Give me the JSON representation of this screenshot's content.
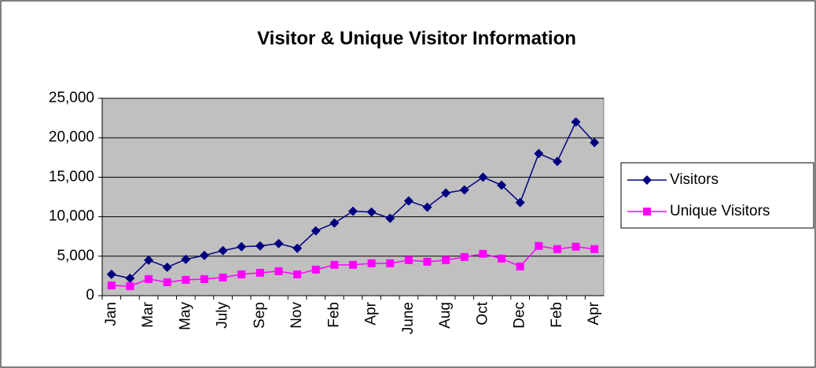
{
  "chart_data": {
    "type": "line",
    "title": "Visitor & Unique Visitor Information",
    "categories": [
      "Jan",
      null,
      "Mar",
      null,
      "May",
      null,
      "July",
      null,
      "Sep",
      null,
      "Nov",
      null,
      "Feb",
      null,
      "Apr",
      null,
      "June",
      null,
      "Aug",
      null,
      "Oct",
      null,
      "Dec",
      null,
      "Feb",
      null,
      "Apr"
    ],
    "series": [
      {
        "name": "Visitors",
        "color": "#000080",
        "marker": "diamond",
        "values": [
          2700,
          2200,
          4500,
          3600,
          4600,
          5100,
          5700,
          6200,
          6300,
          6600,
          6000,
          8200,
          9200,
          10700,
          10600,
          9800,
          12000,
          11200,
          13000,
          13400,
          15000,
          14000,
          11800,
          18000,
          17000,
          22000,
          19400
        ]
      },
      {
        "name": "Unique Visitors",
        "color": "#ff00ff",
        "marker": "square",
        "values": [
          1300,
          1200,
          2100,
          1700,
          2000,
          2100,
          2300,
          2700,
          2900,
          3100,
          2700,
          3300,
          3900,
          3900,
          4100,
          4100,
          4500,
          4300,
          4500,
          4900,
          5300,
          4700,
          3700,
          6300,
          5900,
          6200,
          5900
        ]
      }
    ],
    "ylim": [
      0,
      25000
    ],
    "yticks": [
      0,
      {
        "value": 5000,
        "label": "5,000"
      },
      {
        "value": 10000,
        "label": "10,000"
      },
      {
        "value": 15000,
        "label": "15,000"
      },
      {
        "value": 20000,
        "label": "20,000"
      },
      {
        "value": 25000,
        "label": "25,000"
      }
    ],
    "grid": true,
    "legend": "right",
    "plot_background": "#c0c0c0"
  }
}
